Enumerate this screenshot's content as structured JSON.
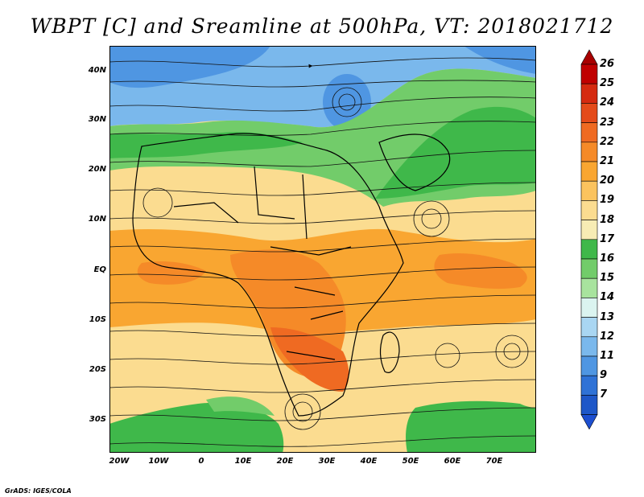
{
  "title": "WBPT [C] and Sreamline at 500hPa, VT: 2018021712",
  "lat_labels": [
    "40N",
    "30N",
    "20N",
    "10N",
    "EQ",
    "10S",
    "20S",
    "30S"
  ],
  "lon_labels": [
    "20W",
    "10W",
    "0",
    "10E",
    "20E",
    "30E",
    "40E",
    "50E",
    "60E",
    "70E"
  ],
  "colorbar": {
    "labels": [
      "26",
      "25",
      "24",
      "23",
      "22",
      "21",
      "20",
      "19",
      "18",
      "17",
      "16",
      "15",
      "14",
      "13",
      "12",
      "11",
      "9",
      "7"
    ],
    "colors": [
      "#c00000",
      "#d52a10",
      "#e44b1a",
      "#ef6a22",
      "#f58a28",
      "#f9a631",
      "#fbc35e",
      "#fbdc90",
      "#f7ecb4",
      "#3fb84a",
      "#72cc6a",
      "#a8e39e",
      "#dbf4f0",
      "#a9d6f2",
      "#7ab8ec",
      "#4f96e2",
      "#2f72d6",
      "#1e57c8"
    ],
    "top_arrow_color": "#a80000",
    "bottom_arrow_color": "#1d4fd0"
  },
  "credit": "GrADS: IGES/COLA"
}
